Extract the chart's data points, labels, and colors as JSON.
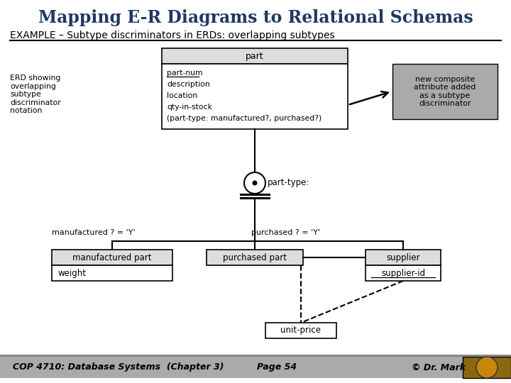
{
  "title": "Mapping E-R Diagrams to Relational Schemas",
  "subtitle": "EXAMPLE – Subtype discriminators in ERDs: overlapping subtypes",
  "title_color": "#1F3864",
  "subtitle_color": "#000000",
  "bg_color": "#FFFFFF",
  "footer_bg": "#AAAAAA",
  "footer_text": "COP 4710: Database Systems  (Chapter 3)",
  "footer_page": "Page 54",
  "footer_copy": "© Dr. Mark",
  "part_entity_header": "part",
  "part_entity_attrs": [
    "part-num",
    "description",
    "location",
    "qty-in-stock",
    "(part-type: manufactured?, purchased?)"
  ],
  "part_entity_underline_attr": "part-num",
  "note_box_text": "new composite\nattribute added\nas a subtype\ndiscriminator",
  "erd_label": "ERD showing\noverlapping\nsubtype\ndiscriminator\nnotation",
  "discriminator_label": "part-type:",
  "mfg_label": "manufactured ? = 'Y'",
  "pur_label": "purchased ? = 'Y'",
  "mfg_entity_header": "manufactured part",
  "mfg_attr": "weight",
  "pur_entity_header": "purchased part",
  "sup_entity_header": "supplier",
  "sup_attr": "supplier-id",
  "rel_attr": "unit-price",
  "note_box_color": "#AAAAAA",
  "header_fill": "#DDDDDD",
  "body_fill": "#FFFFFF"
}
